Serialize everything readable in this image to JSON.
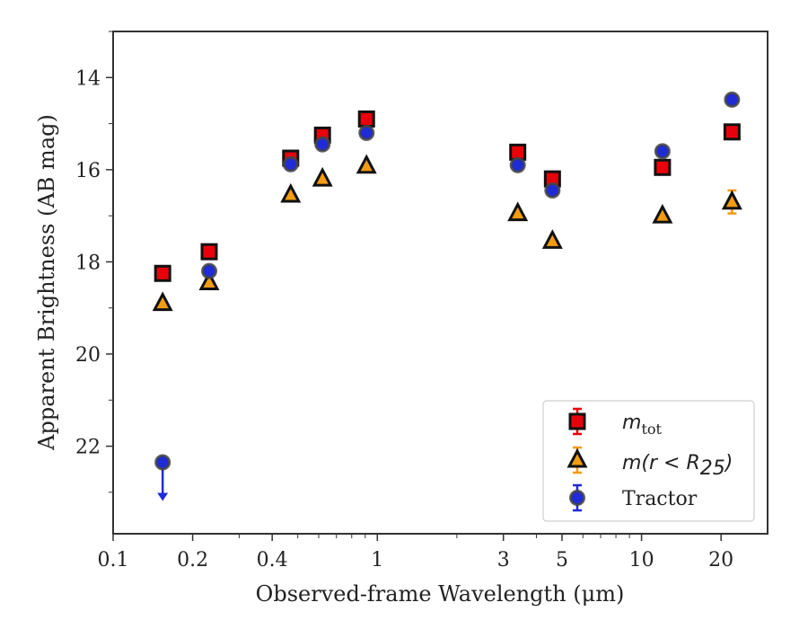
{
  "chart_data": {
    "type": "scatter",
    "xscale": "log",
    "xlim": [
      0.1,
      30
    ],
    "ylim": [
      13,
      23.9
    ],
    "y_inverted": true,
    "xlabel": "Observed-frame Wavelength (μm)",
    "ylabel": "Apparent Brightness (AB mag)",
    "x_ticks": [
      0.1,
      0.2,
      0.4,
      1,
      3,
      5,
      10,
      20
    ],
    "x_tick_labels": [
      "0.1",
      "0.2",
      "0.4",
      "1",
      "3",
      "5",
      "10",
      "20"
    ],
    "y_ticks": [
      14,
      16,
      18,
      20,
      22
    ],
    "y_tick_labels": [
      "14",
      "16",
      "18",
      "20",
      "22"
    ],
    "grid": false,
    "legend_position": "lower-right",
    "series": [
      {
        "name_base": "m",
        "name_sub": "tot",
        "marker": "square",
        "color": "#e8000b",
        "x": [
          0.154,
          0.231,
          0.47,
          0.62,
          0.91,
          3.4,
          4.6,
          12.0,
          22.0
        ],
        "y": [
          18.25,
          17.78,
          15.75,
          15.25,
          14.9,
          15.62,
          16.2,
          15.95,
          15.18
        ],
        "yerr": [
          0.05,
          0.05,
          0.03,
          0.03,
          0.03,
          0.05,
          0.05,
          0.05,
          0.05
        ]
      },
      {
        "name_prefix": "m(r < R",
        "name_sub": "25",
        "name_suffix": ")",
        "marker": "triangle",
        "color": "#f39c12",
        "x": [
          0.154,
          0.231,
          0.47,
          0.62,
          0.91,
          3.4,
          4.6,
          12.0,
          22.0
        ],
        "y": [
          18.9,
          18.45,
          16.55,
          16.2,
          15.92,
          16.95,
          17.55,
          17.0,
          16.7
        ],
        "yerr": [
          0.05,
          0.05,
          0.03,
          0.03,
          0.03,
          0.05,
          0.05,
          0.05,
          0.25
        ]
      },
      {
        "name": "Tractor",
        "marker": "circle",
        "color": "#1f2bd6",
        "x": [
          0.154,
          0.231,
          0.47,
          0.62,
          0.91,
          3.4,
          4.6,
          12.0,
          22.0
        ],
        "y": [
          22.35,
          18.2,
          15.88,
          15.45,
          15.2,
          15.9,
          16.45,
          15.6,
          14.48
        ],
        "yerr": [
          0.05,
          0.05,
          0.03,
          0.03,
          0.03,
          0.05,
          0.05,
          0.05,
          0.05
        ],
        "upper_limit": [
          true,
          false,
          false,
          false,
          false,
          false,
          false,
          false,
          false
        ]
      }
    ]
  }
}
